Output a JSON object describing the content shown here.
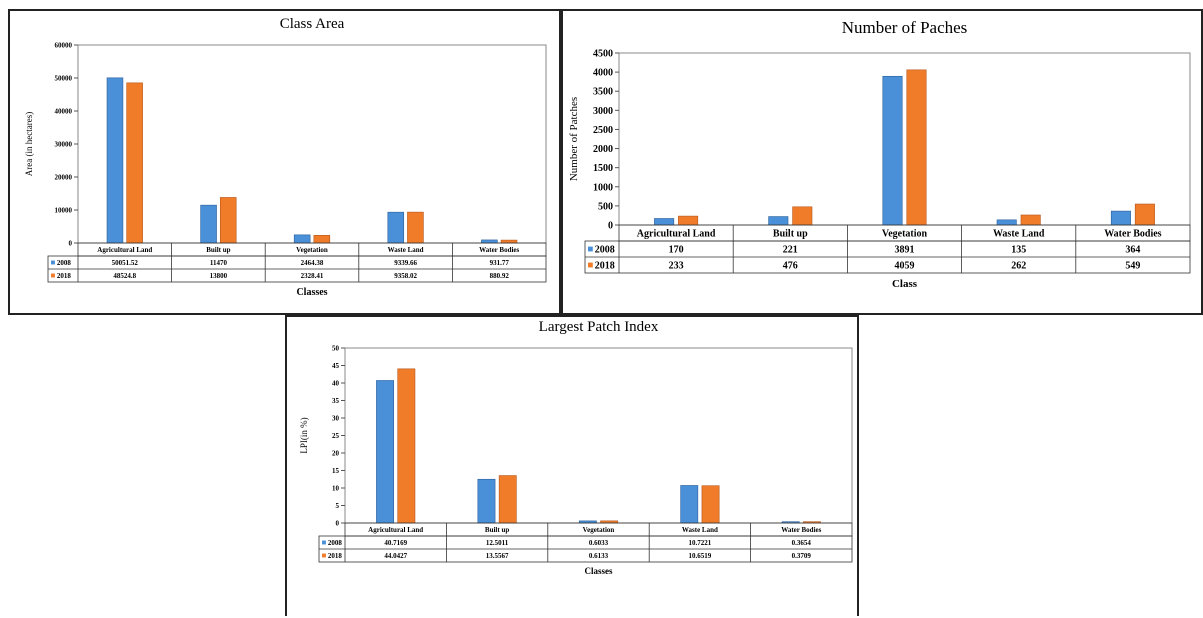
{
  "colors": {
    "y2008": "#4a90d9",
    "y2018": "#f07c2a",
    "bar_edge_2008": "#2a5f99",
    "bar_edge_2018": "#b4561a"
  },
  "chart_data": [
    {
      "type": "bar",
      "title": "Class Area",
      "xlabel": "Classes",
      "ylabel": "Area (in hectares)",
      "ylim": [
        0,
        60000
      ],
      "yticks": [
        "0",
        "10000",
        "20000",
        "30000",
        "40000",
        "50000",
        "60000"
      ],
      "categories": [
        "Agricultural Land",
        "Built up",
        "Vegetation",
        "Waste Land",
        "Water Bodies"
      ],
      "legend": "data-table",
      "grid": false,
      "series": [
        {
          "name": "2008",
          "values": [
            50051.52,
            11470,
            2464.38,
            9339.66,
            931.77
          ],
          "labels": [
            "50051.52",
            "11470",
            "2464.38",
            "9339.66",
            "931.77"
          ]
        },
        {
          "name": "2018",
          "values": [
            48524.8,
            13800,
            2328.41,
            9358.02,
            880.92
          ],
          "labels": [
            "48524.8",
            "13800",
            "2328.41",
            "9358.02",
            "880.92"
          ]
        }
      ]
    },
    {
      "type": "bar",
      "title": "Number of Paches",
      "xlabel": "Class",
      "ylabel": "Number of Patches",
      "ylim": [
        0,
        4500
      ],
      "yticks": [
        "0",
        "500",
        "1000",
        "1500",
        "2000",
        "2500",
        "3000",
        "3500",
        "4000",
        "4500"
      ],
      "categories": [
        "Agricultural Land",
        "Built up",
        "Vegetation",
        "Waste Land",
        "Water Bodies"
      ],
      "legend": "data-table",
      "grid": false,
      "series": [
        {
          "name": "2008",
          "values": [
            170,
            221,
            3891,
            135,
            364
          ],
          "labels": [
            "170",
            "221",
            "3891",
            "135",
            "364"
          ]
        },
        {
          "name": "2018",
          "values": [
            233,
            476,
            4059,
            262,
            549
          ],
          "labels": [
            "233",
            "476",
            "4059",
            "262",
            "549"
          ]
        }
      ]
    },
    {
      "type": "bar",
      "title": "Largest Patch Index",
      "xlabel": "Classes",
      "ylabel": "LPI(in %)",
      "ylim": [
        0,
        50
      ],
      "yticks": [
        "0",
        "5",
        "10",
        "15",
        "20",
        "25",
        "30",
        "35",
        "40",
        "45",
        "50"
      ],
      "categories": [
        "Agricultural Land",
        "Built up",
        "Vegetation",
        "Waste Land",
        "Water Bodies"
      ],
      "legend": "data-table",
      "grid": false,
      "series": [
        {
          "name": "2008",
          "values": [
            40.7169,
            12.5011,
            0.6033,
            10.7221,
            0.3654
          ],
          "labels": [
            "40.7169",
            "12.5011",
            "0.6033",
            "10.7221",
            "0.3654"
          ]
        },
        {
          "name": "2018",
          "values": [
            44.0427,
            13.5567,
            0.6133,
            10.6519,
            0.3709
          ],
          "labels": [
            "44.0427",
            "13.5567",
            "0.6133",
            "10.6519",
            "0.3709"
          ]
        }
      ]
    }
  ]
}
